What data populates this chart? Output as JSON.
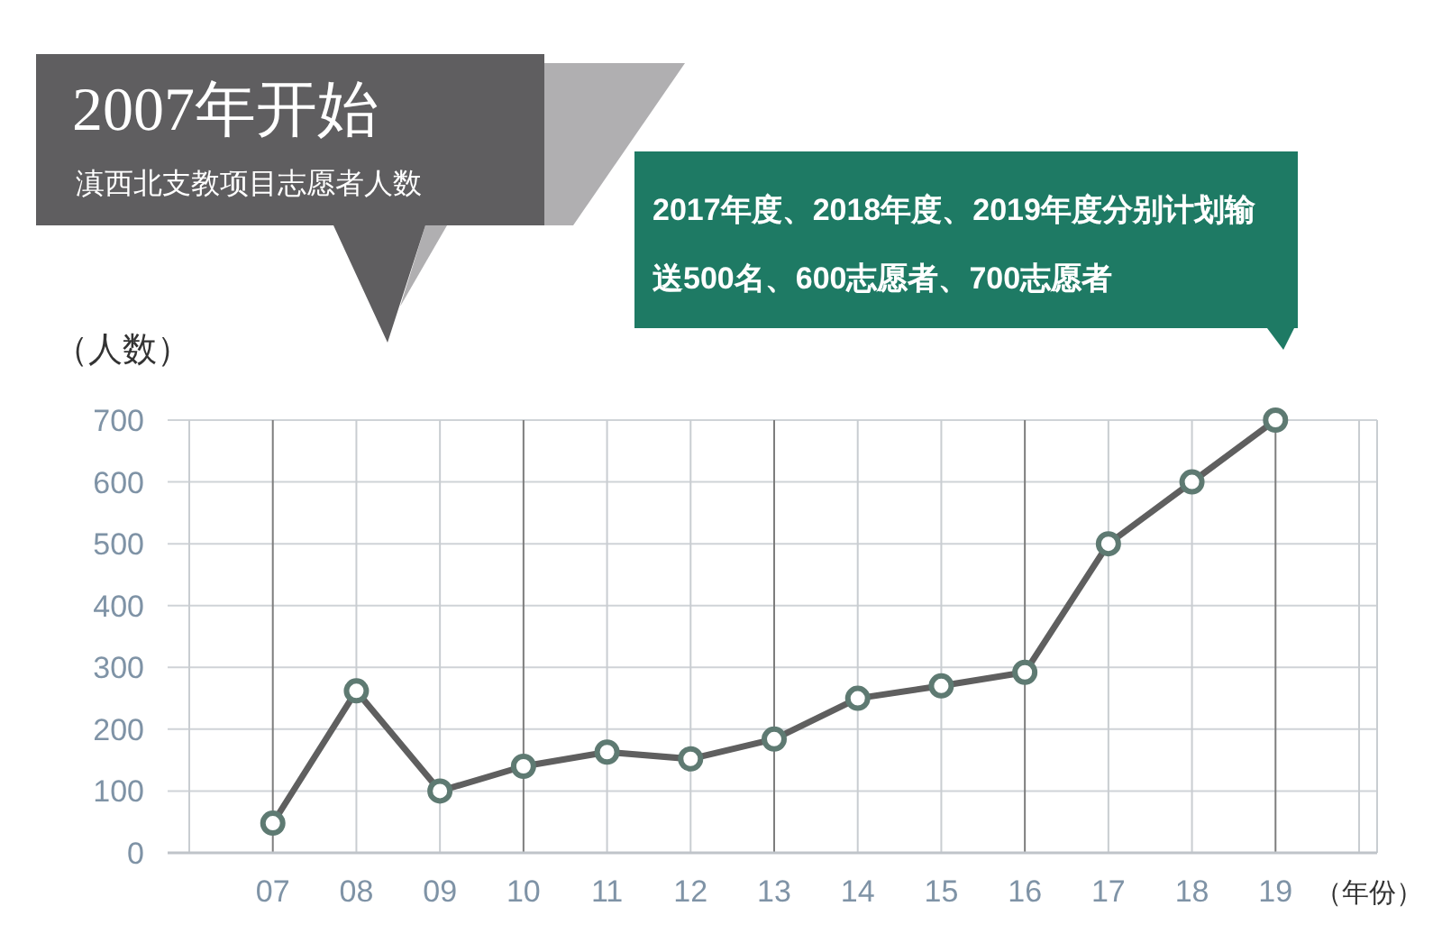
{
  "chart_data": {
    "type": "line",
    "title": "2007年开始",
    "subtitle": "滇西北支教项目志愿者人数",
    "annotations": [
      "2017年度、2018年度、2019年度分别计划输送500名、600志愿者、700志愿者"
    ],
    "xlabel": "（年份）",
    "ylabel": "（人数）",
    "categories": [
      "07",
      "08",
      "09",
      "10",
      "11",
      "12",
      "13",
      "14",
      "15",
      "16",
      "17",
      "18",
      "19"
    ],
    "series": [
      {
        "color": "#5f5f5f",
        "values": [
          48,
          262,
          100,
          140,
          163,
          152,
          184,
          250,
          270,
          292,
          500,
          600,
          700
        ]
      }
    ],
    "ylim": [
      0,
      700
    ],
    "yticks": [
      0,
      100,
      200,
      300,
      400,
      500,
      600,
      700
    ],
    "grid": true,
    "marker": "circle",
    "line_style": "solid"
  }
}
